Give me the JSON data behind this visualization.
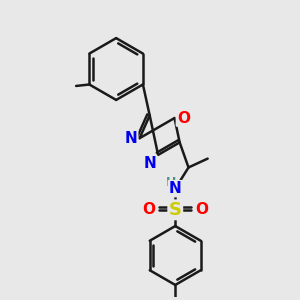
{
  "background_color": "#e8e8e8",
  "bond_color": "#1a1a1a",
  "bond_width": 1.8,
  "atom_colors": {
    "N": "#0000ee",
    "O": "#ff0000",
    "S": "#cccc00",
    "H": "#4a9090",
    "C": "#1a1a1a"
  },
  "font_size_atoms": 11,
  "figsize": [
    3.0,
    3.0
  ],
  "dpi": 100
}
